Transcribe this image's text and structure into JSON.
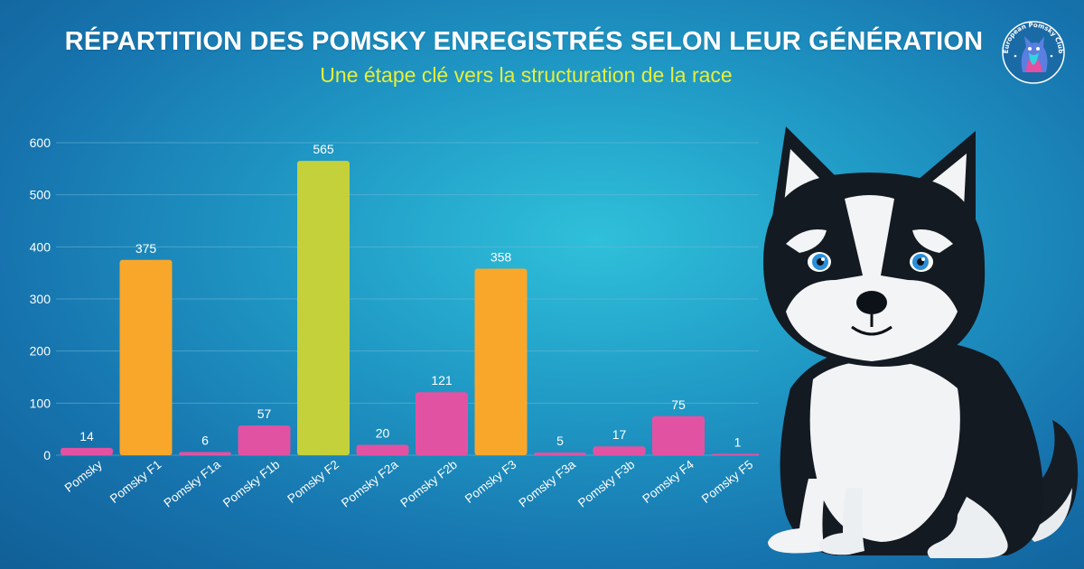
{
  "header": {
    "title": "RÉPARTITION DES POMSKY ENREGISTRÉS SELON LEUR GÉNÉRATION",
    "subtitle": "Une étape clé vers la structuration de la race"
  },
  "logo": {
    "text": "European Pomsky Club",
    "icon": "pomsky-club-badge-icon"
  },
  "illustration": {
    "icon": "husky-dog-illustration"
  },
  "colors": {
    "orange": "#f9a72b",
    "green": "#c4d13b",
    "pink": "#e252a3",
    "grid": "#6fb8d8",
    "text": "#ffffff"
  },
  "chart_data": {
    "type": "bar",
    "title": "RÉPARTITION DES POMSKY ENREGISTRÉS SELON LEUR GÉNÉRATION",
    "subtitle": "Une étape clé vers la structuration de la race",
    "xlabel": "",
    "ylabel": "",
    "ylim": [
      0,
      600
    ],
    "yticks": [
      0,
      100,
      200,
      300,
      400,
      500,
      600
    ],
    "grid": true,
    "categories": [
      "Pomsky",
      "Pomsky F1",
      "Pomsky F1a",
      "Pomsky F1b",
      "Pomsky F2",
      "Pomsky F2a",
      "Pomsky F2b",
      "Pomsky F3",
      "Pomsky F3a",
      "Pomsky F3b",
      "Pomsky F4",
      "Pomsky F5"
    ],
    "values": [
      14,
      375,
      6,
      57,
      565,
      20,
      121,
      358,
      5,
      17,
      75,
      1
    ],
    "bar_colors": [
      "#e252a3",
      "#f9a72b",
      "#e252a3",
      "#e252a3",
      "#c4d13b",
      "#e252a3",
      "#e252a3",
      "#f9a72b",
      "#e252a3",
      "#e252a3",
      "#e252a3",
      "#e252a3"
    ]
  }
}
